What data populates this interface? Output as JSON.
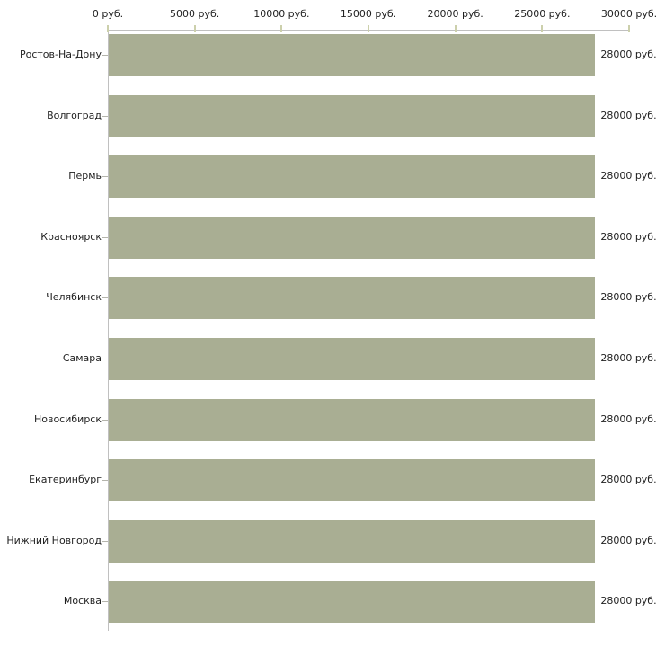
{
  "chart_data": {
    "type": "bar",
    "orientation": "horizontal",
    "title": "",
    "xlabel": "",
    "ylabel": "",
    "categories": [
      "Ростов-На-Дону",
      "Волгоград",
      "Пермь",
      "Красноярск",
      "Челябинск",
      "Самара",
      "Новосибирск",
      "Екатеринбург",
      "Нижний Новгород",
      "Москва"
    ],
    "values": [
      28000,
      28000,
      28000,
      28000,
      28000,
      28000,
      28000,
      28000,
      28000,
      28000
    ],
    "value_labels": [
      "28000 руб.",
      "28000 руб.",
      "28000 руб.",
      "28000 руб.",
      "28000 руб.",
      "28000 руб.",
      "28000 руб.",
      "28000 руб.",
      "28000 руб.",
      "28000 руб."
    ],
    "unit": "руб.",
    "xlim": [
      0,
      30000
    ],
    "x_ticks": [
      0,
      5000,
      10000,
      15000,
      20000,
      25000,
      30000
    ],
    "x_tick_labels": [
      "0 руб.",
      "5000 руб.",
      "10000 руб.",
      "15000 руб.",
      "20000 руб.",
      "25000 руб.",
      "30000 руб."
    ],
    "grid": false,
    "legend": "none",
    "axis_position": "top",
    "colors": {
      "bar": "#a9ae93",
      "axis_line": "#c0c0c0",
      "x_tick_mark": "#ccd0ac",
      "category_tick_mark": "#b4b4ac",
      "text": "#1f1f1f",
      "background": "#ffffff"
    }
  }
}
